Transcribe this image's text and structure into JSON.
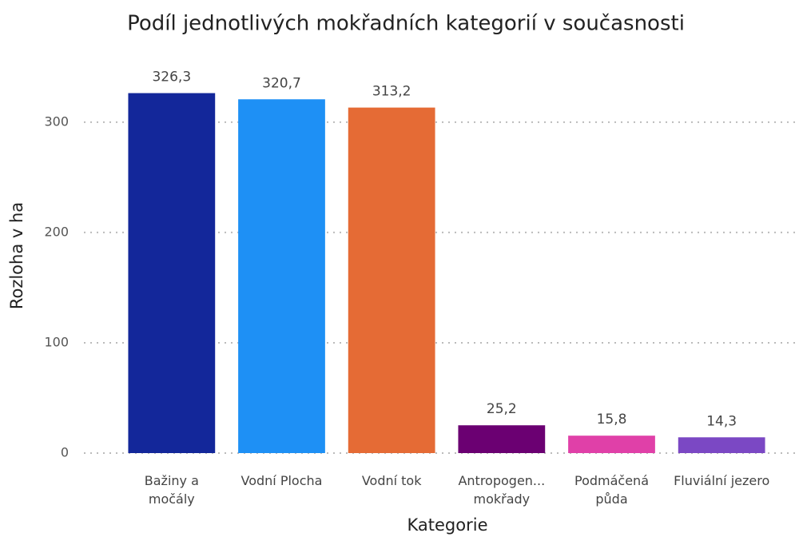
{
  "chart_data": {
    "type": "bar",
    "title": "Podíl jednotlivých mokřadních kategorií v současnosti",
    "x_label": "Kategorie",
    "y_label": "Rozloha v ha",
    "categories": [
      "Bažiny a močály",
      "Vodní Plocha",
      "Vodní tok",
      "Antropogen... mokřady",
      "Podmáčená půda",
      "Fluviální jezero"
    ],
    "values": [
      326.3,
      320.7,
      313.2,
      25.2,
      15.8,
      14.3
    ],
    "value_labels": [
      "326,3",
      "320,7",
      "313,2",
      "25,2",
      "15,8",
      "14,3"
    ],
    "colors": [
      "#13279a",
      "#1e90f5",
      "#e56b35",
      "#6b0072",
      "#e040a8",
      "#7b48c4"
    ],
    "ylim": [
      0,
      360
    ],
    "yticks": [
      0,
      100,
      200,
      300
    ],
    "grid": true
  }
}
